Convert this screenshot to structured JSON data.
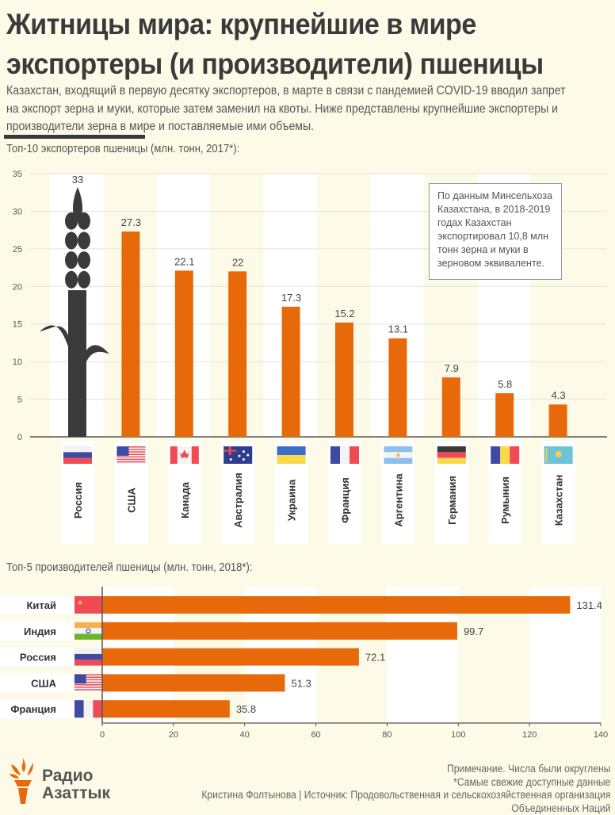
{
  "header": {
    "title_line1": "Житницы мира: крупнейшие в мире",
    "title_line2": "экспортеры (и производители) пшеницы",
    "subtitle": "Казахстан, входящий в первую десятку экспортеров, в марте в связи с пандемией COVID-19 вводил запрет на экспорт зерна и муки, которые затем заменил на квоты. Ниже представлены крупнейшие экспортеры и производители зерна в мире и поставляемые ими объемы."
  },
  "colors": {
    "background": "#fdfbe8",
    "bar": "#e8690a",
    "wheat_icon": "#3a3a3a",
    "band": "#ffffff",
    "text": "#3a3a3a"
  },
  "callout": {
    "text": "По данным Минсельхоза Казахстана, в 2018-2019 годах Казахстан экспортировал 10,8 млн тонн зерна и муки в зерновом эквиваленте."
  },
  "chart_data": [
    {
      "type": "bar",
      "orientation": "vertical",
      "title": "Топ-10 экспортеров пшеницы (млн. тонн, 2017*):",
      "xlabel": "",
      "ylabel": "",
      "ylim": [
        0,
        35
      ],
      "yticks": [
        0,
        5,
        10,
        15,
        20,
        25,
        30,
        35
      ],
      "grid": true,
      "categories": [
        "Россия",
        "США",
        "Канада",
        "Австралия",
        "Украина",
        "Франция",
        "Аргентина",
        "Германия",
        "Румыния",
        "Казахстан"
      ],
      "flags": [
        "russia",
        "usa",
        "canada",
        "australia",
        "ukraine",
        "france",
        "argentina",
        "germany",
        "romania",
        "kazakhstan"
      ],
      "values": [
        33,
        27.3,
        22.1,
        22,
        17.3,
        15.2,
        13.1,
        7.9,
        5.8,
        4.3
      ],
      "value_labels": [
        "33",
        "27.3",
        "22.1",
        "22",
        "17.3",
        "15.2",
        "13.1",
        "7.9",
        "5.8",
        "4.3"
      ],
      "first_bar_style": "wheat-icon"
    },
    {
      "type": "bar",
      "orientation": "horizontal",
      "title": "Топ-5 производителей пшеницы (млн. тонн, 2018*):",
      "xlim": [
        0,
        140
      ],
      "xticks": [
        0,
        20,
        40,
        60,
        80,
        100,
        120,
        140
      ],
      "grid": false,
      "categories": [
        "Китай",
        "Индия",
        "Россия",
        "США",
        "Франция"
      ],
      "flags": [
        "china",
        "india",
        "russia",
        "usa",
        "france"
      ],
      "values": [
        131.4,
        99.7,
        72.1,
        51.3,
        35.8
      ],
      "value_labels": [
        "131.4",
        "99.7",
        "72.1",
        "51.3",
        "35.8"
      ]
    }
  ],
  "footer": {
    "note1": "Примечание. Числа были округлены",
    "note2": "*Самые свежие доступные данные",
    "note3": "Кристина Фолтынова | Источник: Продовольственная и сельскохозяйственная организация",
    "note4": "Объединенных Наций",
    "logo_line1": "Радио",
    "logo_line2": "Азаттык"
  }
}
